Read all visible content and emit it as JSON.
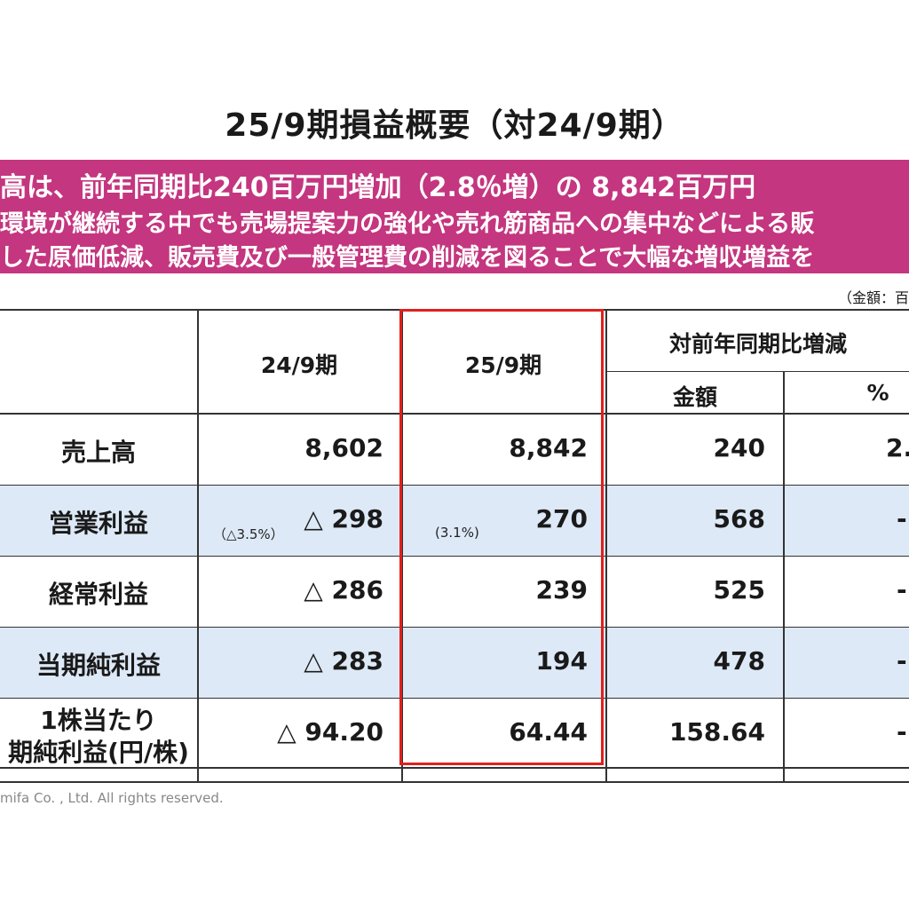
{
  "title": "25/9期損益概要（対24/9期）",
  "banner": {
    "line1": "高は、前年同期比240百万円増加（2.8％増）の 8,842百万円",
    "line2": "環境が継続する中でも売場提案力の強化や売れ筋商品への集中などによる販",
    "line3": "した原価低減、販売費及び一般管理費の削減を図ることで大幅な増収増益を"
  },
  "unit_note": "（金額：百",
  "table": {
    "headers": {
      "prev": "24/9期",
      "curr": "25/9期",
      "yoy": "対前年同期比増減",
      "amount": "金額",
      "percent": "%"
    },
    "rows": [
      {
        "label": "売上高",
        "prev": "8,602",
        "curr": "8,842",
        "amount": "240",
        "percent": "2.",
        "prev_ratio": "",
        "curr_ratio": ""
      },
      {
        "label": "営業利益",
        "prev": "△ 298",
        "curr": "270",
        "amount": "568",
        "percent": "-",
        "prev_ratio": "（△3.5%）",
        "curr_ratio": "(3.1%)"
      },
      {
        "label": "経常利益",
        "prev": "△ 286",
        "curr": "239",
        "amount": "525",
        "percent": "-",
        "prev_ratio": "",
        "curr_ratio": ""
      },
      {
        "label": "当期純利益",
        "prev": "△ 283",
        "curr": "194",
        "amount": "478",
        "percent": "-",
        "prev_ratio": "",
        "curr_ratio": ""
      },
      {
        "label": "1株当たり",
        "label2": "期純利益(円/株)",
        "prev": "△ 94.20",
        "curr": "64.44",
        "amount": "158.64",
        "percent": "-",
        "prev_ratio": "",
        "curr_ratio": ""
      }
    ]
  },
  "footer": "mifa Co. , Ltd. All rights reserved."
}
